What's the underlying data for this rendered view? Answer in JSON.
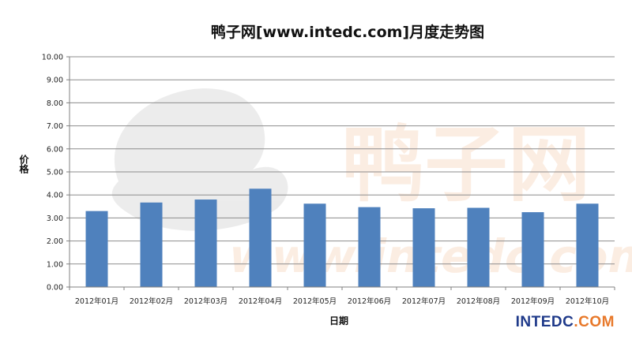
{
  "chart_data": {
    "type": "bar",
    "title": "鸭子网[www.intedc.com]月度走势图",
    "xlabel": "日期",
    "ylabel": "价格",
    "ylim": [
      0,
      10
    ],
    "yticks": [
      "0.00",
      "1.00",
      "2.00",
      "3.00",
      "4.00",
      "5.00",
      "6.00",
      "7.00",
      "8.00",
      "9.00",
      "10.00"
    ],
    "grid": true,
    "legend": "none",
    "categories": [
      "2012年01月",
      "2012年02月",
      "2012年03月",
      "2012年04月",
      "2012年05月",
      "2012年06月",
      "2012年07月",
      "2012年08月",
      "2012年09月",
      "2012年10月"
    ],
    "values": [
      3.3,
      3.67,
      3.8,
      4.27,
      3.62,
      3.47,
      3.42,
      3.44,
      3.25,
      3.62
    ],
    "bar_color": "#4f81bd"
  },
  "watermark": {
    "text": "鸭子网",
    "url": "www.intedc.com"
  },
  "brand": {
    "part1": "INTEDC",
    "part2": ".COM"
  }
}
